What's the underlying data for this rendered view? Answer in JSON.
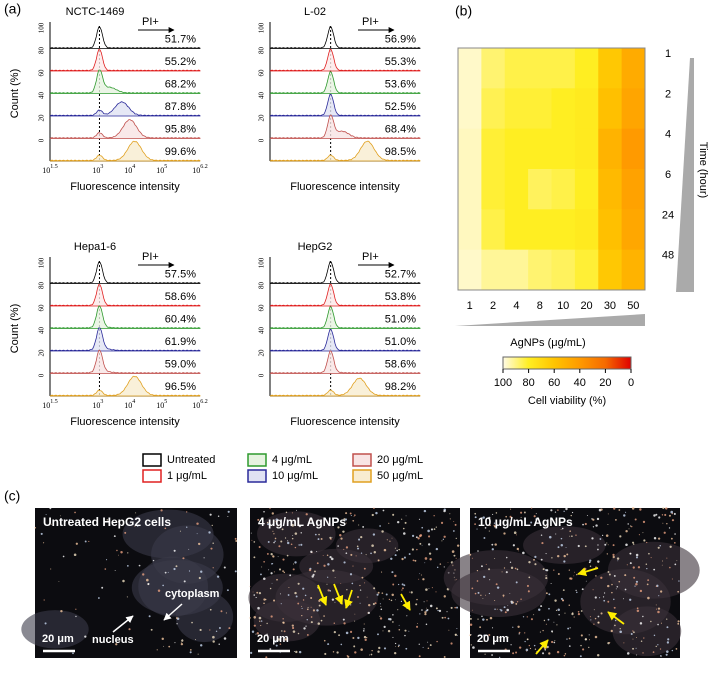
{
  "panel_a": {
    "label": "(a)",
    "y_axis_label": "Count (%)",
    "x_axis_label": "Fluorescence intensity",
    "gate_label": "PI+",
    "yticks": [
      "100",
      "80",
      "60",
      "40",
      "20",
      "0"
    ],
    "xticks": [
      {
        "base": "10",
        "exp": "1.5"
      },
      {
        "base": "10",
        "exp": "3"
      },
      {
        "base": "10",
        "exp": "4"
      },
      {
        "base": "10",
        "exp": "5"
      },
      {
        "base": "10",
        "exp": "6.2"
      }
    ],
    "plots": [
      {
        "title": "NCTC-1469",
        "percentages": [
          "51.7%",
          "55.2%",
          "68.2%",
          "87.8%",
          "95.8%",
          "99.6%"
        ]
      },
      {
        "title": "L-02",
        "percentages": [
          "56.9%",
          "55.3%",
          "53.6%",
          "52.5%",
          "68.4%",
          "98.5%"
        ]
      },
      {
        "title": "Hepa1-6",
        "percentages": [
          "57.5%",
          "58.6%",
          "60.4%",
          "61.9%",
          "59.0%",
          "96.5%"
        ]
      },
      {
        "title": "HepG2",
        "percentages": [
          "52.7%",
          "53.8%",
          "51.0%",
          "51.0%",
          "58.6%",
          "98.2%"
        ]
      }
    ],
    "legend": [
      {
        "name": "Untreated",
        "color": "#000000",
        "fill": "#ffffff"
      },
      {
        "name": "4 μg/mL",
        "color": "#2e9a2e",
        "fill": "#e6f3e0"
      },
      {
        "name": "20 μg/mL",
        "color": "#c0504d",
        "fill": "#f8e4e4"
      },
      {
        "name": "1 μg/mL",
        "color": "#e02020",
        "fill": "#ffffff"
      },
      {
        "name": "10 μg/mL",
        "color": "#2a2a9a",
        "fill": "#e0e2f3"
      },
      {
        "name": "50 μg/mL",
        "color": "#e0a020",
        "fill": "#f8ecd0"
      }
    ]
  },
  "panel_b": {
    "label": "(b)",
    "rows": [
      "1",
      "2",
      "4",
      "6",
      "24",
      "48"
    ],
    "row_axis_label": "Time (hour)",
    "columns": [
      "1",
      "2",
      "4",
      "8",
      "10",
      "20",
      "30",
      "50"
    ],
    "column_axis_label": "AgNPs (μg/mL)",
    "values": [
      [
        97,
        88,
        84,
        84,
        84,
        80,
        62,
        48
      ],
      [
        97,
        85,
        82,
        82,
        80,
        78,
        58,
        45
      ],
      [
        96,
        82,
        80,
        80,
        80,
        78,
        52,
        40
      ],
      [
        96,
        82,
        80,
        86,
        84,
        80,
        55,
        44
      ],
      [
        96,
        84,
        80,
        80,
        80,
        78,
        58,
        46
      ],
      [
        97,
        92,
        92,
        88,
        86,
        82,
        62,
        52
      ]
    ],
    "colorbar": {
      "title": "Cell viability (%)",
      "clim": [
        100,
        0
      ],
      "ticks": [
        100,
        80,
        60,
        40,
        20,
        0
      ],
      "colors": [
        "#fffbe6",
        "#ffee22",
        "#ffc400",
        "#ff9a00",
        "#f56a00",
        "#e00000"
      ]
    }
  },
  "panel_c": {
    "label": "(c)",
    "images": [
      {
        "title": "Untreated HepG2 cells",
        "scale_bar": "20 μm",
        "annotations": [
          "cytoplasm",
          "nucleus"
        ]
      },
      {
        "title": "4 μg/mL AgNPs",
        "scale_bar": "20 μm"
      },
      {
        "title": "10 μg/mL AgNPs",
        "scale_bar": "20 μm"
      }
    ]
  }
}
